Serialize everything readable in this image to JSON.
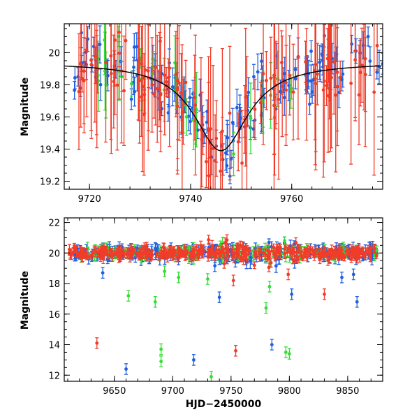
{
  "colors": {
    "blue": "#1f5fe0",
    "green": "#33dd33",
    "red": "#f03c28",
    "model": "#000000"
  },
  "chart_data": [
    {
      "type": "scatter",
      "panel": "top",
      "title": "",
      "xlabel": "",
      "ylabel": "Magnitude",
      "xlim": [
        9715,
        9778
      ],
      "ylim": [
        20.18,
        19.15
      ],
      "y_inverted": true,
      "xticks": [
        9720,
        9740,
        9760
      ],
      "xtick_labels": [
        "9720",
        "9740",
        "9760"
      ],
      "yticks": [
        19.2,
        19.4,
        19.6,
        19.8,
        20.0
      ],
      "ytick_labels": [
        "19.2",
        "19.4",
        "19.6",
        "19.8",
        "20"
      ],
      "model_curve": {
        "baseline": 19.94,
        "peak": 19.39,
        "t0": 9746,
        "tE": 6.5
      },
      "series": [
        {
          "name": "blue",
          "color": "#1f5fe0",
          "x_range": [
            9717,
            9778
          ],
          "n": 150,
          "seed": 11,
          "err_range": [
            0.04,
            0.12
          ]
        },
        {
          "name": "green",
          "color": "#33dd33",
          "x_range": [
            9720,
            9760
          ],
          "n": 34,
          "seed": 23,
          "err_range": [
            0.05,
            0.25
          ]
        },
        {
          "name": "red",
          "color": "#f03c28",
          "x_range": [
            9715,
            9778
          ],
          "n": 130,
          "seed": 37,
          "err_range": [
            0.08,
            0.55
          ]
        }
      ]
    },
    {
      "type": "scatter",
      "panel": "bottom",
      "title": "",
      "xlabel": "HJD−2450000",
      "ylabel": "Magnitude",
      "xlim": [
        9607,
        9880
      ],
      "ylim": [
        22.3,
        11.6
      ],
      "y_inverted": true,
      "xticks": [
        9650,
        9700,
        9750,
        9800,
        9850
      ],
      "xtick_labels": [
        "9650",
        "9700",
        "9750",
        "9800",
        "9850"
      ],
      "yticks": [
        12,
        14,
        16,
        18,
        20,
        22
      ],
      "ytick_labels": [
        "12",
        "14",
        "16",
        "18",
        "20",
        "22"
      ],
      "series": [
        {
          "name": "blue",
          "color": "#1f5fe0",
          "x_range": [
            9615,
            9875
          ],
          "n": 230,
          "seed": 5,
          "err_range": [
            0.2,
            0.5
          ],
          "outliers": [
            [
              9660,
              12.4
            ],
            [
              9718,
              13.0
            ],
            [
              9785,
              14.0
            ],
            [
              9740,
              17.1
            ],
            [
              9802,
              17.3
            ],
            [
              9845,
              18.4
            ],
            [
              9858,
              16.8
            ],
            [
              9855,
              18.6
            ],
            [
              9640,
              18.7
            ]
          ]
        },
        {
          "name": "green",
          "color": "#33dd33",
          "x_range": [
            9615,
            9875
          ],
          "n": 110,
          "seed": 9,
          "err_range": [
            0.2,
            0.4
          ],
          "outliers": [
            [
              9733,
              11.9
            ],
            [
              9690,
              12.9
            ],
            [
              9690,
              13.7
            ],
            [
              9797,
              13.5
            ],
            [
              9800,
              13.4
            ],
            [
              9662,
              17.2
            ],
            [
              9685,
              16.8
            ],
            [
              9780,
              16.4
            ],
            [
              9783,
              17.8
            ],
            [
              9730,
              18.3
            ],
            [
              9705,
              18.4
            ],
            [
              9693,
              18.8
            ]
          ]
        },
        {
          "name": "red",
          "color": "#f03c28",
          "x_range": [
            9610,
            9875
          ],
          "n": 380,
          "seed": 17,
          "err_range": [
            0.15,
            0.35
          ],
          "outliers": [
            [
              9635,
              14.1
            ],
            [
              9754,
              13.6
            ],
            [
              9830,
              17.3
            ],
            [
              9799,
              18.6
            ],
            [
              9752,
              18.2
            ]
          ]
        }
      ]
    }
  ]
}
